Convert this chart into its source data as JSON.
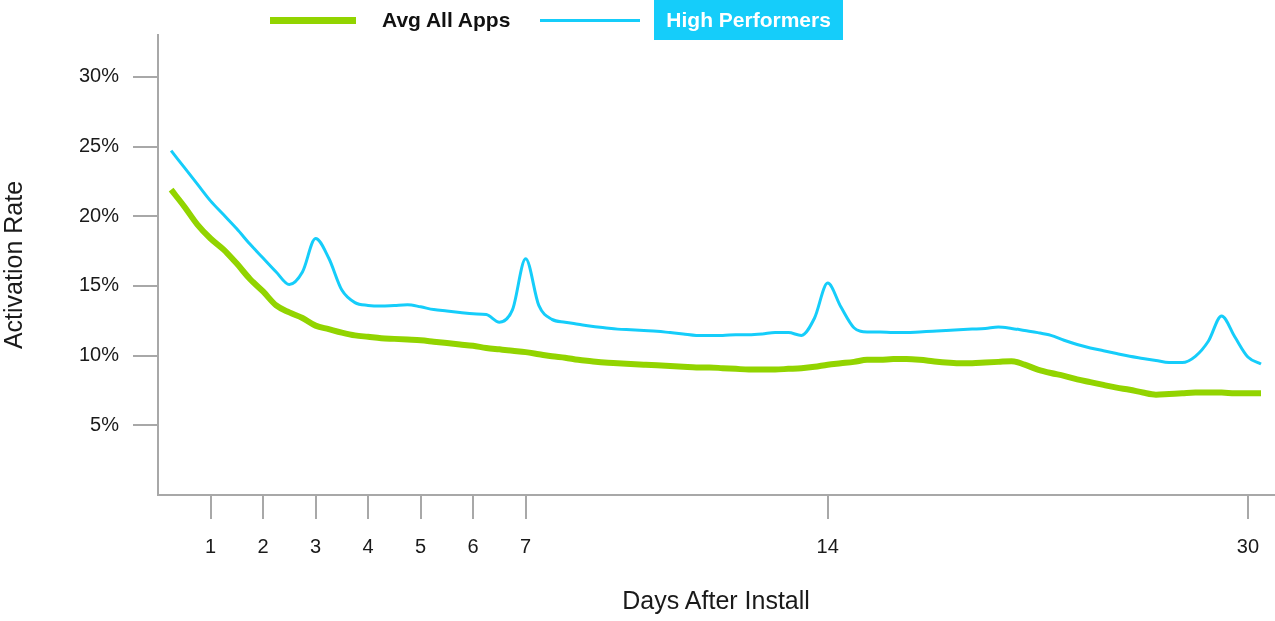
{
  "chart_data": {
    "type": "line",
    "xlabel": "Days After Install",
    "ylabel": "Activation Rate",
    "legend": "top",
    "categories": [
      null,
      null,
      null,
      null,
      "1",
      null,
      null,
      null,
      "2",
      null,
      null,
      null,
      "3",
      null,
      null,
      null,
      "4",
      null,
      null,
      null,
      "5",
      null,
      null,
      null,
      "6",
      null,
      null,
      null,
      "7",
      null,
      null,
      null,
      null,
      null,
      null,
      null,
      null,
      null,
      null,
      null,
      null,
      null,
      null,
      null,
      null,
      null,
      null,
      null,
      null,
      null,
      null,
      "14",
      null,
      null,
      null,
      null,
      null,
      null,
      null,
      null,
      null,
      null,
      null,
      null,
      null,
      null,
      null,
      null,
      null,
      null,
      null,
      null,
      null,
      null,
      null,
      null,
      null,
      null,
      null,
      null,
      null,
      null,
      null,
      "30",
      null,
      null
    ],
    "ylim": [
      0,
      33
    ],
    "yticks": [
      {
        "value": 5,
        "label": "5%"
      },
      {
        "value": 10,
        "label": "10%"
      },
      {
        "value": 15,
        "label": "15%"
      },
      {
        "value": 20,
        "label": "20%"
      },
      {
        "value": 25,
        "label": "25%"
      },
      {
        "value": 30,
        "label": "30%"
      }
    ],
    "series": [
      {
        "name": "Avg All Apps",
        "color": "#92d400",
        "values": [
          null,
          21.9,
          20.7,
          19.4,
          18.4,
          17.6,
          16.6,
          15.5,
          14.6,
          13.6,
          13.1,
          12.7,
          12.15,
          11.9,
          11.65,
          11.45,
          11.35,
          11.25,
          11.2,
          11.15,
          11.1,
          11.0,
          10.9,
          10.8,
          10.7,
          10.55,
          10.45,
          10.35,
          10.25,
          10.1,
          9.95,
          9.85,
          9.7,
          9.6,
          9.5,
          9.45,
          9.4,
          9.35,
          9.3,
          9.25,
          9.2,
          9.15,
          9.15,
          9.1,
          9.05,
          9.0,
          9.0,
          9.0,
          9.05,
          9.1,
          9.2,
          9.35,
          9.45,
          9.55,
          9.7,
          9.7,
          9.75,
          9.75,
          9.7,
          9.6,
          9.5,
          9.45,
          9.45,
          9.5,
          9.55,
          9.6,
          9.35,
          9.0,
          8.75,
          8.55,
          8.3,
          8.1,
          7.9,
          7.7,
          7.55,
          7.35,
          7.2,
          7.25,
          7.3,
          7.35,
          7.35,
          7.35,
          7.3,
          7.3,
          7.3,
          null
        ]
      },
      {
        "name": "High Performers",
        "color": "#15cdfa",
        "values": [
          null,
          24.7,
          23.5,
          22.3,
          21.1,
          20.1,
          19.1,
          18.0,
          17.0,
          16.0,
          15.1,
          16.0,
          18.4,
          17.0,
          14.7,
          13.8,
          13.6,
          13.55,
          13.6,
          13.65,
          13.5,
          13.3,
          13.2,
          13.1,
          13.0,
          12.95,
          12.4,
          13.3,
          16.95,
          13.6,
          12.6,
          12.4,
          12.25,
          12.1,
          12.0,
          11.9,
          11.85,
          11.8,
          11.75,
          11.65,
          11.55,
          11.45,
          11.45,
          11.45,
          11.5,
          11.5,
          11.55,
          11.65,
          11.65,
          11.45,
          12.7,
          15.2,
          13.5,
          12.0,
          11.7,
          11.7,
          11.65,
          11.65,
          11.7,
          11.75,
          11.8,
          11.85,
          11.9,
          11.95,
          12.05,
          11.95,
          11.8,
          11.65,
          11.45,
          11.1,
          10.8,
          10.55,
          10.35,
          10.15,
          9.95,
          9.8,
          9.65,
          9.5,
          9.5,
          9.95,
          11.05,
          12.85,
          11.35,
          9.9,
          9.4,
          null
        ]
      }
    ]
  }
}
